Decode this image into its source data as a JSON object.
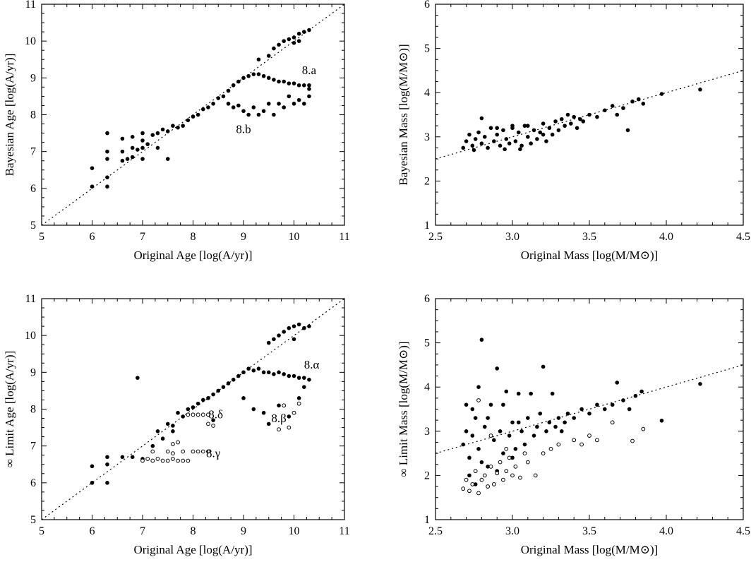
{
  "chart_data": [
    {
      "id": "bayes-age",
      "type": "scatter",
      "xlabel": "Original Age [log(A/yr)]",
      "ylabel": "Bayesian Age [log(A/yr)]",
      "xlim": [
        5,
        11
      ],
      "ylim": [
        5,
        11
      ],
      "xticks": [
        5,
        6,
        7,
        8,
        9,
        10,
        11
      ],
      "yticks": [
        5,
        6,
        7,
        8,
        9,
        10,
        11
      ],
      "reference_line": {
        "style": "dotted",
        "slope": 1,
        "intercept": 0
      },
      "annotations": [
        {
          "text": "8.a",
          "x": 10.3,
          "y": 9.1
        },
        {
          "text": "8.b",
          "x": 9.0,
          "y": 7.5
        }
      ],
      "filled_points": [
        [
          6.0,
          6.05
        ],
        [
          6.0,
          6.55
        ],
        [
          6.3,
          6.05
        ],
        [
          6.3,
          6.3
        ],
        [
          6.3,
          6.8
        ],
        [
          6.3,
          7.0
        ],
        [
          6.3,
          7.5
        ],
        [
          6.6,
          6.75
        ],
        [
          6.6,
          7.0
        ],
        [
          6.6,
          7.35
        ],
        [
          6.7,
          6.8
        ],
        [
          6.8,
          6.85
        ],
        [
          6.8,
          7.1
        ],
        [
          6.8,
          7.4
        ],
        [
          6.9,
          7.05
        ],
        [
          7.0,
          6.8
        ],
        [
          7.0,
          7.1
        ],
        [
          7.0,
          7.3
        ],
        [
          7.0,
          7.5
        ],
        [
          7.1,
          7.2
        ],
        [
          7.2,
          7.45
        ],
        [
          7.3,
          7.1
        ],
        [
          7.3,
          7.5
        ],
        [
          7.4,
          7.6
        ],
        [
          7.5,
          6.8
        ],
        [
          7.5,
          7.55
        ],
        [
          7.6,
          7.7
        ],
        [
          7.7,
          7.65
        ],
        [
          7.8,
          7.7
        ],
        [
          7.9,
          7.85
        ],
        [
          8.0,
          7.95
        ],
        [
          8.1,
          8.0
        ],
        [
          8.2,
          8.15
        ],
        [
          8.3,
          8.2
        ],
        [
          8.4,
          8.3
        ],
        [
          8.5,
          8.45
        ],
        [
          8.6,
          8.5
        ],
        [
          8.7,
          8.65
        ],
        [
          8.8,
          8.8
        ],
        [
          8.9,
          8.9
        ],
        [
          9.0,
          9.0
        ],
        [
          9.1,
          9.05
        ],
        [
          9.2,
          9.1
        ],
        [
          9.3,
          9.1
        ],
        [
          9.4,
          9.05
        ],
        [
          9.5,
          9.0
        ],
        [
          9.6,
          8.95
        ],
        [
          9.7,
          8.9
        ],
        [
          9.8,
          8.9
        ],
        [
          9.9,
          8.85
        ],
        [
          10.0,
          8.85
        ],
        [
          10.1,
          8.8
        ],
        [
          10.2,
          8.8
        ],
        [
          10.3,
          8.8
        ],
        [
          9.3,
          9.5
        ],
        [
          9.5,
          9.6
        ],
        [
          9.6,
          9.8
        ],
        [
          9.7,
          9.9
        ],
        [
          9.8,
          10.0
        ],
        [
          9.9,
          10.05
        ],
        [
          10.0,
          10.1
        ],
        [
          10.1,
          10.2
        ],
        [
          10.2,
          10.25
        ],
        [
          10.3,
          10.3
        ],
        [
          10.0,
          9.95
        ],
        [
          10.1,
          10.0
        ],
        [
          8.7,
          8.3
        ],
        [
          8.8,
          8.2
        ],
        [
          8.9,
          8.25
        ],
        [
          9.0,
          8.1
        ],
        [
          9.1,
          8.0
        ],
        [
          9.2,
          8.2
        ],
        [
          9.3,
          8.0
        ],
        [
          9.4,
          8.1
        ],
        [
          9.5,
          8.3
        ],
        [
          9.6,
          8.0
        ],
        [
          9.7,
          8.3
        ],
        [
          9.8,
          8.2
        ],
        [
          9.9,
          8.5
        ],
        [
          10.0,
          8.3
        ],
        [
          10.1,
          8.4
        ],
        [
          10.2,
          8.3
        ],
        [
          10.3,
          8.5
        ],
        [
          10.3,
          8.7
        ]
      ],
      "open_points": []
    },
    {
      "id": "bayes-mass",
      "type": "scatter",
      "xlabel": "Original Mass [log(M/M⊙)]",
      "ylabel": "Bayesian Mass [log(M/M⊙)]",
      "xlim": [
        2.5,
        4.5
      ],
      "ylim": [
        1,
        6
      ],
      "xticks": [
        2.5,
        3.0,
        3.5,
        4.0,
        4.5
      ],
      "yticks": [
        1,
        2,
        3,
        4,
        5,
        6
      ],
      "reference_line": {
        "style": "dotted",
        "slope": 1,
        "intercept": 0
      },
      "annotations": [],
      "filled_points": [
        [
          2.68,
          2.75
        ],
        [
          2.7,
          2.9
        ],
        [
          2.72,
          3.05
        ],
        [
          2.74,
          2.8
        ],
        [
          2.76,
          2.95
        ],
        [
          2.78,
          3.1
        ],
        [
          2.8,
          2.85
        ],
        [
          2.82,
          3.0
        ],
        [
          2.84,
          2.75
        ],
        [
          2.86,
          3.2
        ],
        [
          2.88,
          2.9
        ],
        [
          2.9,
          3.05
        ],
        [
          2.92,
          2.8
        ],
        [
          2.94,
          3.15
        ],
        [
          2.96,
          2.95
        ],
        [
          2.98,
          2.85
        ],
        [
          3.0,
          3.2
        ],
        [
          3.02,
          2.9
        ],
        [
          3.04,
          3.1
        ],
        [
          3.06,
          2.8
        ],
        [
          3.08,
          3.25
        ],
        [
          3.1,
          3.0
        ],
        [
          3.12,
          2.85
        ],
        [
          3.14,
          3.15
        ],
        [
          3.16,
          2.95
        ],
        [
          3.18,
          3.1
        ],
        [
          3.2,
          3.3
        ],
        [
          3.22,
          2.9
        ],
        [
          3.24,
          3.2
        ],
        [
          3.26,
          3.05
        ],
        [
          3.28,
          3.35
        ],
        [
          3.3,
          3.15
        ],
        [
          3.32,
          3.4
        ],
        [
          3.34,
          3.25
        ],
        [
          3.36,
          3.5
        ],
        [
          3.38,
          3.3
        ],
        [
          3.4,
          3.45
        ],
        [
          3.42,
          3.2
        ],
        [
          3.44,
          3.4
        ],
        [
          3.46,
          3.35
        ],
        [
          3.5,
          3.5
        ],
        [
          3.55,
          3.45
        ],
        [
          3.6,
          3.6
        ],
        [
          3.65,
          3.7
        ],
        [
          3.68,
          3.5
        ],
        [
          3.72,
          3.65
        ],
        [
          3.75,
          3.15
        ],
        [
          3.78,
          3.8
        ],
        [
          3.82,
          3.85
        ],
        [
          3.85,
          3.75
        ],
        [
          3.97,
          3.97
        ],
        [
          4.22,
          4.07
        ],
        [
          2.8,
          3.42
        ],
        [
          2.9,
          3.2
        ],
        [
          3.0,
          3.25
        ],
        [
          3.1,
          3.25
        ],
        [
          3.2,
          3.05
        ],
        [
          2.75,
          2.7
        ],
        [
          2.95,
          2.72
        ],
        [
          3.05,
          2.72
        ]
      ],
      "open_points": []
    },
    {
      "id": "limit-age",
      "type": "scatter",
      "xlabel": "Original Age [log(A/yr)]",
      "ylabel": "∞ Limit Age [log(A/yr)]",
      "xlim": [
        5,
        11
      ],
      "ylim": [
        5,
        11
      ],
      "xticks": [
        5,
        6,
        7,
        8,
        9,
        10,
        11
      ],
      "yticks": [
        5,
        6,
        7,
        8,
        9,
        10,
        11
      ],
      "reference_line": {
        "style": "dotted",
        "slope": 1,
        "intercept": 0
      },
      "annotations": [
        {
          "text": "8.α",
          "x": 10.35,
          "y": 9.1
        },
        {
          "text": "8.β",
          "x": 9.7,
          "y": 7.65
        },
        {
          "text": "8.γ",
          "x": 8.4,
          "y": 6.7
        },
        {
          "text": "8.δ",
          "x": 8.45,
          "y": 7.75
        }
      ],
      "filled_points": [
        [
          6.0,
          6.0
        ],
        [
          6.0,
          6.45
        ],
        [
          6.3,
          6.0
        ],
        [
          6.3,
          6.5
        ],
        [
          6.3,
          6.7
        ],
        [
          6.6,
          6.7
        ],
        [
          6.8,
          6.7
        ],
        [
          6.9,
          8.85
        ],
        [
          7.0,
          6.65
        ],
        [
          7.2,
          7.0
        ],
        [
          7.4,
          7.2
        ],
        [
          7.5,
          7.6
        ],
        [
          7.6,
          7.4
        ],
        [
          7.7,
          7.9
        ],
        [
          7.8,
          7.8
        ],
        [
          7.9,
          8.0
        ],
        [
          8.0,
          8.05
        ],
        [
          8.1,
          8.15
        ],
        [
          8.2,
          8.25
        ],
        [
          8.3,
          8.3
        ],
        [
          8.4,
          8.4
        ],
        [
          8.5,
          8.5
        ],
        [
          8.6,
          8.6
        ],
        [
          8.7,
          8.7
        ],
        [
          8.8,
          8.8
        ],
        [
          8.9,
          8.9
        ],
        [
          9.0,
          9.0
        ],
        [
          9.1,
          9.1
        ],
        [
          9.2,
          9.05
        ],
        [
          9.3,
          9.1
        ],
        [
          9.4,
          9.0
        ],
        [
          9.5,
          9.0
        ],
        [
          9.6,
          8.95
        ],
        [
          9.7,
          9.0
        ],
        [
          9.8,
          8.95
        ],
        [
          9.9,
          8.9
        ],
        [
          10.0,
          8.9
        ],
        [
          10.1,
          8.85
        ],
        [
          10.2,
          8.85
        ],
        [
          10.3,
          8.8
        ],
        [
          9.5,
          9.8
        ],
        [
          9.6,
          9.9
        ],
        [
          9.7,
          10.0
        ],
        [
          9.8,
          10.1
        ],
        [
          9.9,
          10.2
        ],
        [
          10.0,
          10.25
        ],
        [
          10.1,
          10.3
        ],
        [
          10.2,
          10.2
        ],
        [
          10.3,
          10.25
        ],
        [
          10.0,
          9.9
        ],
        [
          9.0,
          8.3
        ],
        [
          9.2,
          8.0
        ],
        [
          9.4,
          7.9
        ],
        [
          9.5,
          7.6
        ],
        [
          9.7,
          8.1
        ],
        [
          9.9,
          7.8
        ],
        [
          10.1,
          8.3
        ],
        [
          10.2,
          8.6
        ],
        [
          8.4,
          7.7
        ],
        [
          7.3,
          7.4
        ],
        [
          7.6,
          7.55
        ]
      ],
      "open_points": [
        [
          7.0,
          6.6
        ],
        [
          7.1,
          6.65
        ],
        [
          7.2,
          6.6
        ],
        [
          7.3,
          6.65
        ],
        [
          7.4,
          6.6
        ],
        [
          7.5,
          6.6
        ],
        [
          7.6,
          6.65
        ],
        [
          7.7,
          6.6
        ],
        [
          7.8,
          6.6
        ],
        [
          7.9,
          6.6
        ],
        [
          7.5,
          6.85
        ],
        [
          7.6,
          6.8
        ],
        [
          7.8,
          6.85
        ],
        [
          8.0,
          6.85
        ],
        [
          8.1,
          6.85
        ],
        [
          8.2,
          6.85
        ],
        [
          8.3,
          6.85
        ],
        [
          7.2,
          6.85
        ],
        [
          7.6,
          7.05
        ],
        [
          7.7,
          7.1
        ],
        [
          7.9,
          7.85
        ],
        [
          8.0,
          7.85
        ],
        [
          8.1,
          7.85
        ],
        [
          8.2,
          7.85
        ],
        [
          8.3,
          7.85
        ],
        [
          8.3,
          7.6
        ],
        [
          8.4,
          7.55
        ],
        [
          9.7,
          7.45
        ],
        [
          9.9,
          7.5
        ],
        [
          10.0,
          7.9
        ],
        [
          9.8,
          8.1
        ],
        [
          10.1,
          8.15
        ]
      ]
    },
    {
      "id": "limit-mass",
      "type": "scatter",
      "xlabel": "Original Mass [log(M/M⊙)]",
      "ylabel": "∞ Limit Mass [log(M/M⊙)]",
      "xlim": [
        2.5,
        4.5
      ],
      "ylim": [
        1,
        6
      ],
      "xticks": [
        2.5,
        3.0,
        3.5,
        4.0,
        4.5
      ],
      "yticks": [
        1,
        2,
        3,
        4,
        5,
        6
      ],
      "reference_line": {
        "style": "dotted",
        "slope": 1,
        "intercept": 0
      },
      "annotations": [],
      "filled_points": [
        [
          2.68,
          2.7
        ],
        [
          2.7,
          3.0
        ],
        [
          2.72,
          2.4
        ],
        [
          2.74,
          2.9
        ],
        [
          2.76,
          3.3
        ],
        [
          2.78,
          2.6
        ],
        [
          2.8,
          5.07
        ],
        [
          2.82,
          3.1
        ],
        [
          2.84,
          2.2
        ],
        [
          2.86,
          3.6
        ],
        [
          2.88,
          2.8
        ],
        [
          2.9,
          4.42
        ],
        [
          2.92,
          3.0
        ],
        [
          2.94,
          2.5
        ],
        [
          2.96,
          3.9
        ],
        [
          2.98,
          2.9
        ],
        [
          3.0,
          3.2
        ],
        [
          3.02,
          2.6
        ],
        [
          3.04,
          3.85
        ],
        [
          3.06,
          3.0
        ],
        [
          3.08,
          2.7
        ],
        [
          3.1,
          3.3
        ],
        [
          3.12,
          3.85
        ],
        [
          3.14,
          2.9
        ],
        [
          3.16,
          3.1
        ],
        [
          3.18,
          3.4
        ],
        [
          3.2,
          4.46
        ],
        [
          3.22,
          3.0
        ],
        [
          3.24,
          3.2
        ],
        [
          3.26,
          3.85
        ],
        [
          3.28,
          3.1
        ],
        [
          3.3,
          3.3
        ],
        [
          3.32,
          3.0
        ],
        [
          3.34,
          3.2
        ],
        [
          3.36,
          3.4
        ],
        [
          3.4,
          3.3
        ],
        [
          3.45,
          3.5
        ],
        [
          3.5,
          3.4
        ],
        [
          3.55,
          3.6
        ],
        [
          3.6,
          3.5
        ],
        [
          3.65,
          3.6
        ],
        [
          3.68,
          4.1
        ],
        [
          3.72,
          3.7
        ],
        [
          3.76,
          3.5
        ],
        [
          3.8,
          3.8
        ],
        [
          3.84,
          3.9
        ],
        [
          3.97,
          3.24
        ],
        [
          4.22,
          4.07
        ],
        [
          2.72,
          2.0
        ],
        [
          2.76,
          1.8
        ],
        [
          2.8,
          2.3
        ],
        [
          2.9,
          2.1
        ],
        [
          3.0,
          2.4
        ],
        [
          2.74,
          3.5
        ],
        [
          2.84,
          3.3
        ],
        [
          2.94,
          3.6
        ],
        [
          3.04,
          3.2
        ],
        [
          2.7,
          3.6
        ],
        [
          2.78,
          4.0
        ]
      ],
      "open_points": [
        [
          2.68,
          1.7
        ],
        [
          2.7,
          1.9
        ],
        [
          2.72,
          1.65
        ],
        [
          2.74,
          1.8
        ],
        [
          2.76,
          2.1
        ],
        [
          2.78,
          1.6
        ],
        [
          2.8,
          1.9
        ],
        [
          2.82,
          2.0
        ],
        [
          2.84,
          1.75
        ],
        [
          2.86,
          2.2
        ],
        [
          2.88,
          1.8
        ],
        [
          2.9,
          2.05
        ],
        [
          2.92,
          2.3
        ],
        [
          2.94,
          1.9
        ],
        [
          2.96,
          2.1
        ],
        [
          2.98,
          2.4
        ],
        [
          3.0,
          2.0
        ],
        [
          3.02,
          2.2
        ],
        [
          3.05,
          1.95
        ],
        [
          3.08,
          2.5
        ],
        [
          3.1,
          2.3
        ],
        [
          3.15,
          2.0
        ],
        [
          3.2,
          2.5
        ],
        [
          3.25,
          2.6
        ],
        [
          3.3,
          2.7
        ],
        [
          3.4,
          2.8
        ],
        [
          3.45,
          2.7
        ],
        [
          3.5,
          2.9
        ],
        [
          3.55,
          2.8
        ],
        [
          3.65,
          3.2
        ],
        [
          3.78,
          2.78
        ],
        [
          3.85,
          3.05
        ],
        [
          2.78,
          3.7
        ],
        [
          2.86,
          2.9
        ],
        [
          2.96,
          2.6
        ]
      ]
    }
  ]
}
